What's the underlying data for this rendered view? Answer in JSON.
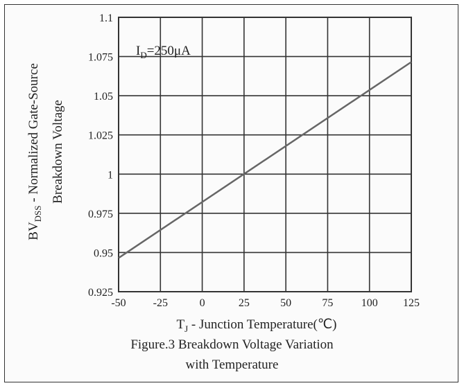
{
  "chart_data": {
    "type": "line",
    "annotation": {
      "main": "I",
      "sub": "D",
      "rest": "=250μA"
    },
    "ylabel_line1": {
      "main": "BV",
      "sub": "DSS",
      "rest": " - Normalized Gate-Source"
    },
    "ylabel_line2": "Breakdown Voltage",
    "xlabel": {
      "main": "T",
      "sub": "J",
      "rest": " - Junction Temperature(℃)"
    },
    "caption_line1": "Figure.3 Breakdown Voltage Variation",
    "caption_line2": "with Temperature",
    "xlim": [
      -50,
      125
    ],
    "ylim": [
      0.925,
      1.1
    ],
    "x_ticks": [
      -50,
      -25,
      0,
      25,
      50,
      75,
      100,
      125
    ],
    "x_tick_labels": [
      "-50",
      "-25",
      "0",
      "25",
      "50",
      "75",
      "100",
      "125"
    ],
    "y_ticks": [
      0.925,
      0.95,
      0.975,
      1.0,
      1.025,
      1.05,
      1.075,
      1.1
    ],
    "y_tick_labels": [
      "0.925",
      "0.95",
      "0.975",
      "1",
      "1.025",
      "1.05",
      "1.075",
      "1.1"
    ],
    "grid": true,
    "series": [
      {
        "x": [
          -50,
          125
        ],
        "y": [
          0.9465,
          1.0715
        ]
      }
    ]
  }
}
